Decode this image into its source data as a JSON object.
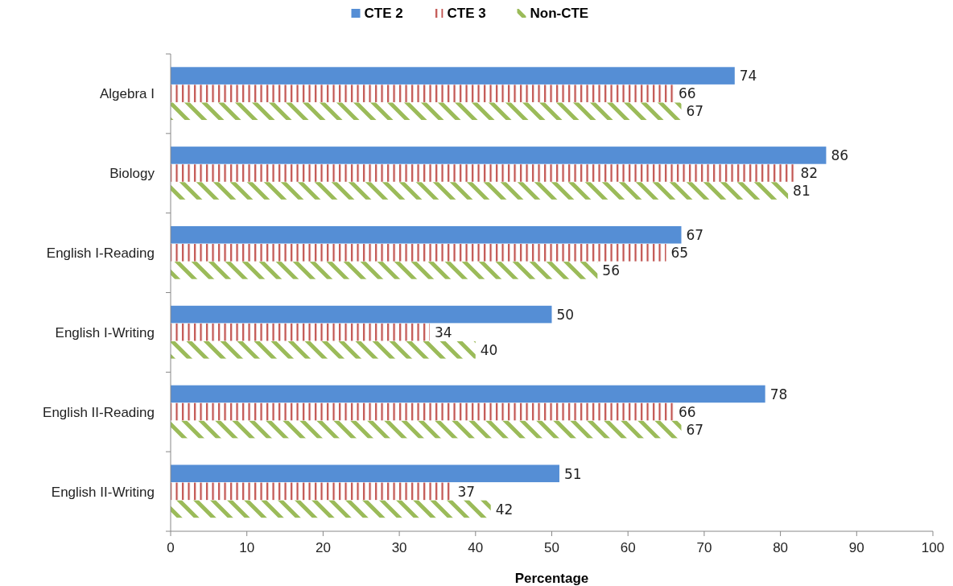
{
  "chart_data": {
    "type": "bar",
    "orientation": "horizontal",
    "xlabel": "Percentage",
    "categories": [
      "Algebra I",
      "Biology",
      "English I-Reading",
      "English I-Writing",
      "English II-Reading",
      "English II-Writing"
    ],
    "series": [
      {
        "name": "CTE 2",
        "color": "#558ed5",
        "values": [
          74,
          86,
          67,
          50,
          78,
          51
        ]
      },
      {
        "name": "CTE 3",
        "color": "#c0504d",
        "values": [
          66,
          82,
          65,
          34,
          66,
          37
        ]
      },
      {
        "name": "Non-CTE",
        "color": "#9bbb59",
        "values": [
          67,
          81,
          56,
          40,
          67,
          42
        ]
      }
    ],
    "xlim": [
      0,
      100
    ],
    "xticks": [
      0,
      10,
      20,
      30,
      40,
      50,
      60,
      70,
      80,
      90,
      100
    ],
    "data_labels": true,
    "legend": "top",
    "grid": false
  }
}
